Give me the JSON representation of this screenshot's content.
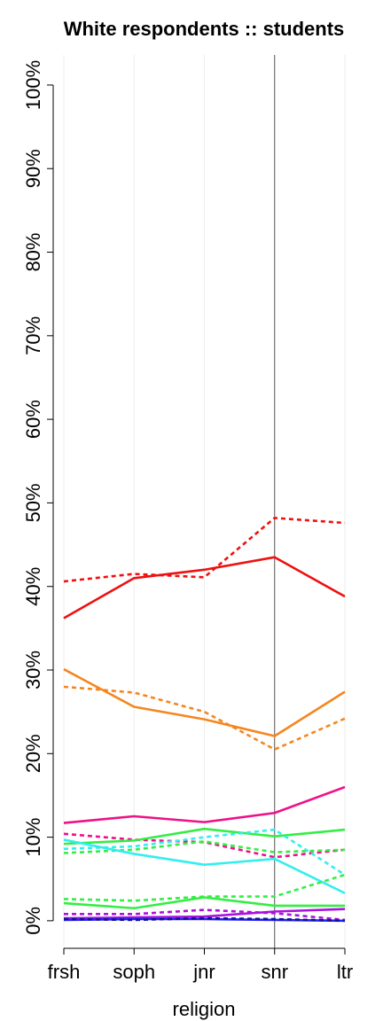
{
  "chart_data": {
    "type": "line",
    "title": "White respondents :: students",
    "x_label": "religion",
    "categories": [
      "frsh",
      "soph",
      "jnr",
      "snr",
      "ltr"
    ],
    "ylim": [
      -3.3,
      103.6
    ],
    "yticks": [
      {
        "value": 0,
        "label": "0%"
      },
      {
        "value": 10,
        "label": "10%"
      },
      {
        "value": 20,
        "label": "20%"
      },
      {
        "value": 30,
        "label": "30%"
      },
      {
        "value": 40,
        "label": "40%"
      },
      {
        "value": 50,
        "label": "50%"
      },
      {
        "value": 60,
        "label": "60%"
      },
      {
        "value": 70,
        "label": "70%"
      },
      {
        "value": 80,
        "label": "80%"
      },
      {
        "value": 90,
        "label": "90%"
      },
      {
        "value": 100,
        "label": "100%"
      }
    ],
    "grid": true,
    "highlight_index": 3,
    "series": [
      {
        "color": "#ee1111",
        "linestyle": "dashed",
        "values": [
          40.6,
          41.5,
          41.1,
          48.2,
          47.6
        ]
      },
      {
        "color": "#ee1111",
        "linestyle": "solid",
        "values": [
          36.2,
          41.0,
          42.0,
          43.5,
          38.8
        ]
      },
      {
        "color": "#f5861f",
        "linestyle": "dashed",
        "values": [
          28.0,
          27.3,
          25.0,
          20.5,
          24.2
        ]
      },
      {
        "color": "#f5861f",
        "linestyle": "solid",
        "values": [
          30.1,
          25.6,
          24.1,
          22.1,
          27.4
        ]
      },
      {
        "color": "#ee1188",
        "linestyle": "solid",
        "values": [
          11.7,
          12.5,
          11.8,
          12.9,
          16.0
        ]
      },
      {
        "color": "#ee1188",
        "linestyle": "dashed",
        "values": [
          10.4,
          9.7,
          9.4,
          7.6,
          8.5
        ]
      },
      {
        "color": "#33ee44",
        "linestyle": "solid",
        "values": [
          9.2,
          9.6,
          11.0,
          10.1,
          10.9
        ]
      },
      {
        "color": "#33ee44",
        "linestyle": "dashed",
        "values": [
          8.1,
          8.5,
          9.5,
          8.2,
          8.5
        ]
      },
      {
        "color": "#33eeee",
        "linestyle": "solid",
        "values": [
          9.7,
          8.0,
          6.7,
          7.4,
          3.3
        ]
      },
      {
        "color": "#33eeee",
        "linestyle": "dashed",
        "values": [
          8.6,
          8.9,
          10.0,
          10.9,
          5.5
        ]
      },
      {
        "color": "#33ee44",
        "linestyle": "dashed",
        "values": [
          2.6,
          2.4,
          2.9,
          2.9,
          5.5
        ]
      },
      {
        "color": "#33ee44",
        "linestyle": "solid",
        "values": [
          2.1,
          1.5,
          2.8,
          1.8,
          1.8
        ]
      },
      {
        "color": "#aa11dd",
        "linestyle": "solid",
        "values": [
          0.3,
          0.4,
          0.5,
          1.1,
          1.4
        ]
      },
      {
        "color": "#aa11dd",
        "linestyle": "dashed",
        "values": [
          0.8,
          0.8,
          1.3,
          0.9,
          0.1
        ]
      },
      {
        "color": "#2222ee",
        "linestyle": "solid",
        "values": [
          0.1,
          0.2,
          0.2,
          0.1,
          0.0
        ]
      },
      {
        "color": "#111199",
        "linestyle": "dashed",
        "values": [
          0.2,
          0.1,
          0.3,
          0.2,
          0.0
        ]
      }
    ]
  }
}
